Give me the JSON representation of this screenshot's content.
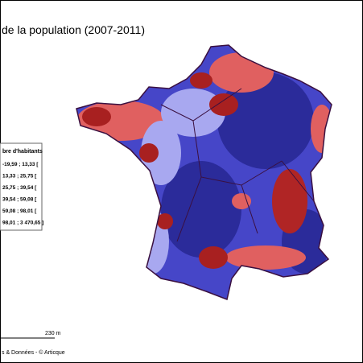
{
  "title": "de la population (2007-2011)",
  "legend": {
    "title": "bre d'habitants",
    "items": [
      "-19,59 ; 13,33 [",
      "13,33 ; 25,75 [",
      "25,75 ; 39,54 [",
      "39,54 ; 59,08 [",
      "59,08 ; 98,01 [",
      "98,01 ; 3 470,65 ]"
    ]
  },
  "scale": {
    "label": "230 m"
  },
  "source": "s & Données - © Articque"
}
